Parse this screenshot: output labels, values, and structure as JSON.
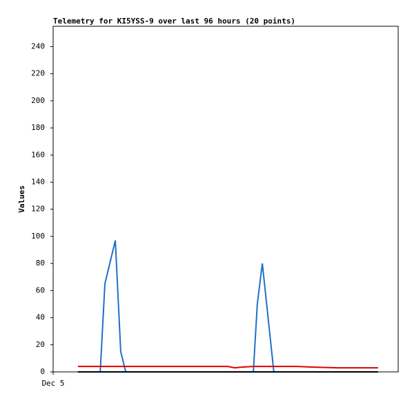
{
  "chart_data": {
    "type": "line",
    "title": "Telemetry for KI5YSS-9 over last 96 hours (20 points)",
    "y_label": "Values",
    "x": [
      6.9,
      13.1,
      14.4,
      17.3,
      18.8,
      20.2,
      29.4,
      39.0,
      48.6,
      50.5,
      52.4,
      55.7,
      56.8,
      58.2,
      61.4,
      67.8,
      72.6,
      79.3,
      85.1,
      90.4
    ],
    "xlim": [
      0,
      96
    ],
    "xticks": [
      {
        "value": 0,
        "label": "Dec 5"
      }
    ],
    "ylim": [
      0,
      255
    ],
    "yticks": [
      0,
      20,
      40,
      60,
      80,
      100,
      120,
      140,
      160,
      180,
      200,
      220,
      240
    ],
    "grid": false,
    "series": [
      {
        "color": "#1f6fc6",
        "values": [
          0,
          0,
          65,
          97,
          15,
          0,
          0,
          0,
          0,
          0,
          0,
          0,
          50,
          80,
          0,
          0,
          0,
          0,
          0,
          0
        ]
      },
      {
        "color": "#e00000",
        "values": [
          4,
          4,
          4,
          4,
          4,
          4,
          4,
          4,
          4,
          3,
          3.5,
          4,
          4,
          4,
          4,
          4,
          3.5,
          3,
          3,
          3
        ]
      },
      {
        "color": "#000000",
        "values": [
          0,
          0,
          0,
          0,
          0,
          0,
          0,
          0,
          0,
          0,
          0,
          0,
          0,
          0,
          0,
          0,
          0,
          0,
          0,
          0
        ]
      }
    ]
  }
}
